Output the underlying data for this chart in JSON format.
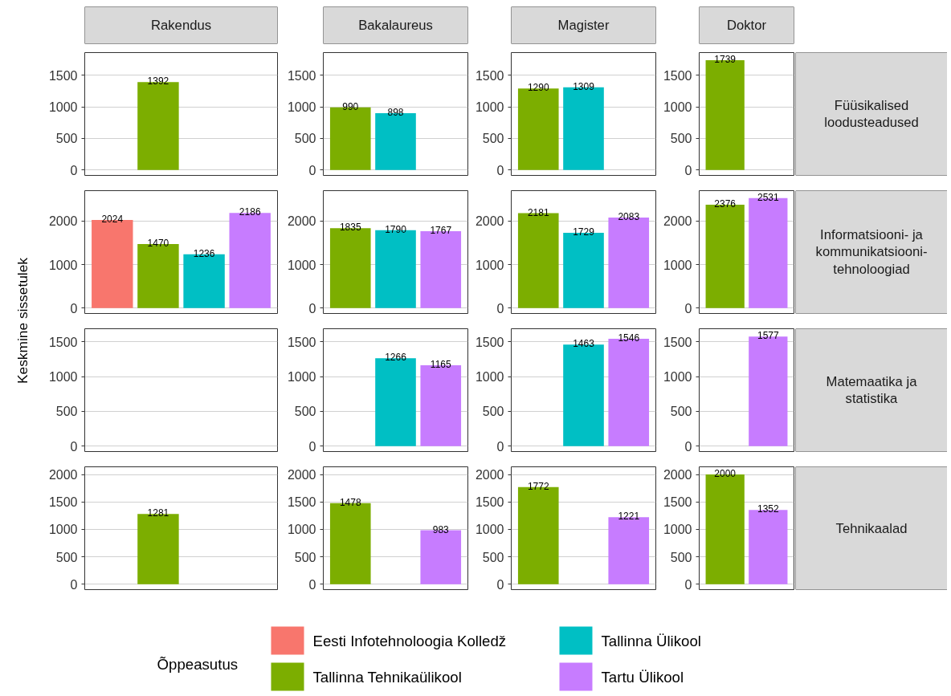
{
  "chart_data": [
    {
      "type": "bar",
      "title": "Rakendus",
      "ylabel": "Keskmine sissetulek",
      "categories": [
        null,
        null,
        null,
        null
      ],
      "series": [
        {
          "color": "#f8766d",
          "values": [
            null,
            null,
            null,
            null
          ]
        },
        {
          "color": "#7cae00",
          "values": [
            null,
            1392,
            null,
            null
          ]
        },
        {
          "color": "#00bfc4",
          "values": [
            null,
            null,
            null,
            null
          ]
        },
        {
          "color": "#c77cff",
          "values": [
            null,
            null,
            null,
            null
          ]
        }
      ],
      "ylim": [
        -87,
        1860
      ],
      "yticks": [
        0,
        500,
        1000,
        1500
      ],
      "grid": "y",
      "tick_labels": "y",
      "data_labels": true
    },
    {
      "type": "bar",
      "title": "Bakalaureus",
      "categories": [
        null,
        null,
        null
      ],
      "series": [
        {
          "color": "#7cae00",
          "values": [
            990,
            null,
            null
          ]
        },
        {
          "color": "#00bfc4",
          "values": [
            null,
            898,
            null
          ]
        },
        {
          "color": "#c77cff",
          "values": [
            null,
            null,
            null
          ]
        }
      ],
      "ylim": [
        -87,
        1860
      ],
      "yticks": [
        0,
        500,
        1000,
        1500
      ],
      "grid": "y",
      "tick_labels": "y",
      "data_labels": true
    },
    {
      "type": "bar",
      "title": "Magister",
      "categories": [
        null,
        null,
        null
      ],
      "series": [
        {
          "color": "#7cae00",
          "values": [
            1290,
            null,
            null
          ]
        },
        {
          "color": "#00bfc4",
          "values": [
            null,
            1309,
            null
          ]
        },
        {
          "color": "#c77cff",
          "values": [
            null,
            null,
            null
          ]
        }
      ],
      "ylim": [
        -87,
        1860
      ],
      "yticks": [
        0,
        500,
        1000,
        1500
      ],
      "grid": "y",
      "tick_labels": "y",
      "data_labels": true
    },
    {
      "type": "bar",
      "title": "Doktor",
      "y2label": "Füüsikalised loodusteadused",
      "categories": [
        null,
        null
      ],
      "series": [
        {
          "color": "#7cae00",
          "values": [
            1739,
            null
          ]
        },
        {
          "color": "#c77cff",
          "values": [
            null,
            null
          ]
        }
      ],
      "ylim": [
        -87,
        1860
      ],
      "yticks": [
        0,
        500,
        1000,
        1500
      ],
      "grid": "y",
      "tick_labels": "y",
      "data_labels": true
    },
    {
      "type": "bar",
      "categories": [
        null,
        null,
        null,
        null
      ],
      "series": [
        {
          "color": "#f8766d",
          "values": [
            2024,
            null,
            null,
            null
          ]
        },
        {
          "color": "#7cae00",
          "values": [
            null,
            1470,
            null,
            null
          ]
        },
        {
          "color": "#00bfc4",
          "values": [
            null,
            null,
            1236,
            null
          ]
        },
        {
          "color": "#c77cff",
          "values": [
            null,
            null,
            null,
            2186
          ]
        }
      ],
      "ylim": [
        -127,
        2700
      ],
      "yticks": [
        0,
        1000,
        2000
      ],
      "grid": "y",
      "tick_labels": "y",
      "data_labels": true
    },
    {
      "type": "bar",
      "categories": [
        null,
        null,
        null
      ],
      "series": [
        {
          "color": "#7cae00",
          "values": [
            1835,
            null,
            null
          ]
        },
        {
          "color": "#00bfc4",
          "values": [
            null,
            1790,
            null
          ]
        },
        {
          "color": "#c77cff",
          "values": [
            null,
            null,
            1767
          ]
        }
      ],
      "ylim": [
        -127,
        2700
      ],
      "yticks": [
        0,
        1000,
        2000
      ],
      "grid": "y",
      "tick_labels": "y",
      "data_labels": true
    },
    {
      "type": "bar",
      "categories": [
        null,
        null,
        null
      ],
      "series": [
        {
          "color": "#7cae00",
          "values": [
            2181,
            null,
            null
          ]
        },
        {
          "color": "#00bfc4",
          "values": [
            null,
            1729,
            null
          ]
        },
        {
          "color": "#c77cff",
          "values": [
            null,
            null,
            2083
          ]
        }
      ],
      "ylim": [
        -127,
        2700
      ],
      "yticks": [
        0,
        1000,
        2000
      ],
      "grid": "y",
      "tick_labels": "y",
      "data_labels": true
    },
    {
      "type": "bar",
      "y2label": "Informatsiooni- ja kommunikatsiooni-tehnoloogiad",
      "categories": [
        null,
        null
      ],
      "series": [
        {
          "color": "#7cae00",
          "values": [
            2376,
            null
          ]
        },
        {
          "color": "#c77cff",
          "values": [
            null,
            2531
          ]
        }
      ],
      "ylim": [
        -127,
        2700
      ],
      "yticks": [
        0,
        1000,
        2000
      ],
      "grid": "y",
      "tick_labels": "y",
      "data_labels": true
    },
    {
      "type": "bar",
      "categories": [
        null,
        null,
        null,
        null
      ],
      "series": [
        {
          "color": "#f8766d",
          "values": [
            null,
            null,
            null,
            null
          ]
        },
        {
          "color": "#7cae00",
          "values": [
            null,
            null,
            null,
            null
          ]
        },
        {
          "color": "#00bfc4",
          "values": [
            null,
            null,
            null,
            null
          ]
        },
        {
          "color": "#c77cff",
          "values": [
            null,
            null,
            null,
            null
          ]
        }
      ],
      "ylim": [
        -79,
        1690
      ],
      "yticks": [
        0,
        500,
        1000,
        1500
      ],
      "grid": "y",
      "tick_labels": "y",
      "data_labels": true
    },
    {
      "type": "bar",
      "categories": [
        null,
        null,
        null
      ],
      "series": [
        {
          "color": "#7cae00",
          "values": [
            null,
            null,
            null
          ]
        },
        {
          "color": "#00bfc4",
          "values": [
            null,
            1266,
            null
          ]
        },
        {
          "color": "#c77cff",
          "values": [
            null,
            null,
            1165
          ]
        }
      ],
      "ylim": [
        -79,
        1690
      ],
      "yticks": [
        0,
        500,
        1000,
        1500
      ],
      "grid": "y",
      "tick_labels": "y",
      "data_labels": true
    },
    {
      "type": "bar",
      "categories": [
        null,
        null,
        null
      ],
      "series": [
        {
          "color": "#7cae00",
          "values": [
            null,
            null,
            null
          ]
        },
        {
          "color": "#00bfc4",
          "values": [
            null,
            1463,
            null
          ]
        },
        {
          "color": "#c77cff",
          "values": [
            null,
            null,
            1546
          ]
        }
      ],
      "ylim": [
        -79,
        1690
      ],
      "yticks": [
        0,
        500,
        1000,
        1500
      ],
      "grid": "y",
      "tick_labels": "y",
      "data_labels": true
    },
    {
      "type": "bar",
      "y2label": "Matemaatika ja statistika",
      "categories": [
        null,
        null
      ],
      "series": [
        {
          "color": "#7cae00",
          "values": [
            null,
            null
          ]
        },
        {
          "color": "#c77cff",
          "values": [
            null,
            1577
          ]
        }
      ],
      "ylim": [
        -79,
        1690
      ],
      "yticks": [
        0,
        500,
        1000,
        1500
      ],
      "grid": "y",
      "tick_labels": "y",
      "data_labels": true
    },
    {
      "type": "bar",
      "legend": "bottom",
      "legend_title": "Õppeasutus",
      "categories": [
        null,
        null,
        null,
        null
      ],
      "series": [
        {
          "name": "Eesti Infotehnoloogia Kolledž",
          "color": "#f8766d",
          "values": [
            null,
            null,
            null,
            null
          ]
        },
        {
          "name": "Tallinna Tehnikaülikool",
          "color": "#7cae00",
          "values": [
            null,
            1281,
            null,
            null
          ]
        },
        {
          "name": "Tallinna Ülikool",
          "color": "#00bfc4",
          "values": [
            null,
            null,
            null,
            null
          ]
        },
        {
          "name": "Tartu Ülikool",
          "color": "#c77cff",
          "values": [
            null,
            null,
            null,
            null
          ]
        }
      ],
      "ylim": [
        -100,
        2140
      ],
      "yticks": [
        0,
        500,
        1000,
        1500,
        2000
      ],
      "grid": "y",
      "tick_labels": "y",
      "data_labels": true
    },
    {
      "type": "bar",
      "categories": [
        null,
        null,
        null
      ],
      "series": [
        {
          "color": "#7cae00",
          "values": [
            1478,
            null,
            null
          ]
        },
        {
          "color": "#00bfc4",
          "values": [
            null,
            null,
            null
          ]
        },
        {
          "color": "#c77cff",
          "values": [
            null,
            null,
            983
          ]
        }
      ],
      "ylim": [
        -100,
        2140
      ],
      "yticks": [
        0,
        500,
        1000,
        1500,
        2000
      ],
      "grid": "y",
      "tick_labels": "y",
      "data_labels": true
    },
    {
      "type": "bar",
      "categories": [
        null,
        null,
        null
      ],
      "series": [
        {
          "color": "#7cae00",
          "values": [
            1772,
            null,
            null
          ]
        },
        {
          "color": "#00bfc4",
          "values": [
            null,
            null,
            null
          ]
        },
        {
          "color": "#c77cff",
          "values": [
            null,
            null,
            1221
          ]
        }
      ],
      "ylim": [
        -100,
        2140
      ],
      "yticks": [
        0,
        500,
        1000,
        1500,
        2000
      ],
      "grid": "y",
      "tick_labels": "y",
      "data_labels": true
    },
    {
      "type": "bar",
      "y2label": "Tehnikaalad",
      "categories": [
        null,
        null
      ],
      "series": [
        {
          "color": "#7cae00",
          "values": [
            2000,
            null
          ]
        },
        {
          "color": "#c77cff",
          "values": [
            null,
            1352
          ]
        }
      ],
      "ylim": [
        -100,
        2140
      ],
      "yticks": [
        0,
        500,
        1000,
        1500,
        2000
      ],
      "grid": "y",
      "tick_labels": "y",
      "data_labels": true
    }
  ]
}
